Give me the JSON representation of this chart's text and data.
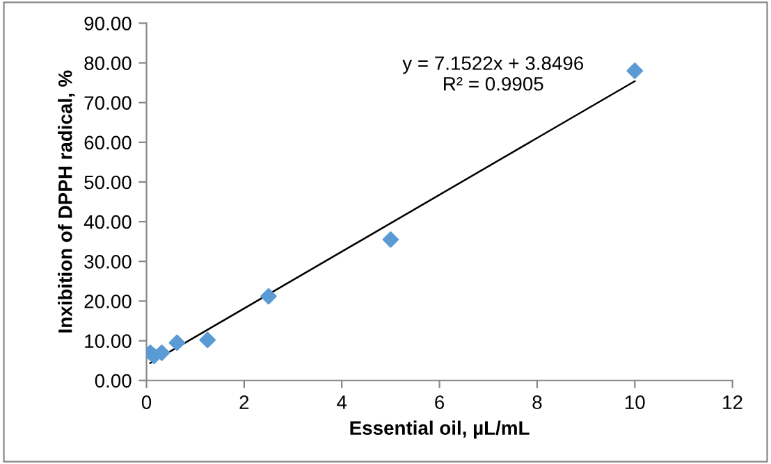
{
  "chart_data": {
    "type": "scatter",
    "xlabel": "Essential oil, µL/mL",
    "ylabel": "Inxibition of DPPH radical, %",
    "x": [
      0.078,
      0.156,
      0.3125,
      0.625,
      1.25,
      2.5,
      5,
      10
    ],
    "series": [
      {
        "color": "#5b9bd5",
        "marker": "diamond",
        "values": [
          7.0,
          6.2,
          7.0,
          9.5,
          10.2,
          21.2,
          35.5,
          78.0
        ]
      },
      {
        "type": "line",
        "color": "#000000",
        "x": [
          0.078,
          10
        ],
        "values": [
          4.4,
          75.4
        ],
        "marker": "none",
        "line_style": "solid"
      }
    ],
    "annotations": [
      "y = 7.1522x + 3.8496",
      "R² = 0.9905"
    ],
    "xlim": [
      0,
      12
    ],
    "xticks": [
      0,
      2,
      4,
      6,
      8,
      10,
      12
    ],
    "ylim": [
      0,
      90
    ],
    "yticks": [
      {
        "value": 0,
        "label": "0.00"
      },
      {
        "value": 10,
        "label": "10.00"
      },
      {
        "value": 20,
        "label": "20.00"
      },
      {
        "value": 30,
        "label": "30.00"
      },
      {
        "value": 40,
        "label": "40.00"
      },
      {
        "value": 50,
        "label": "50.00"
      },
      {
        "value": 60,
        "label": "60.00"
      },
      {
        "value": 70,
        "label": "70.00"
      },
      {
        "value": 80,
        "label": "80.00"
      },
      {
        "value": 90,
        "label": "90.00"
      }
    ],
    "grid": false,
    "legend": false
  }
}
